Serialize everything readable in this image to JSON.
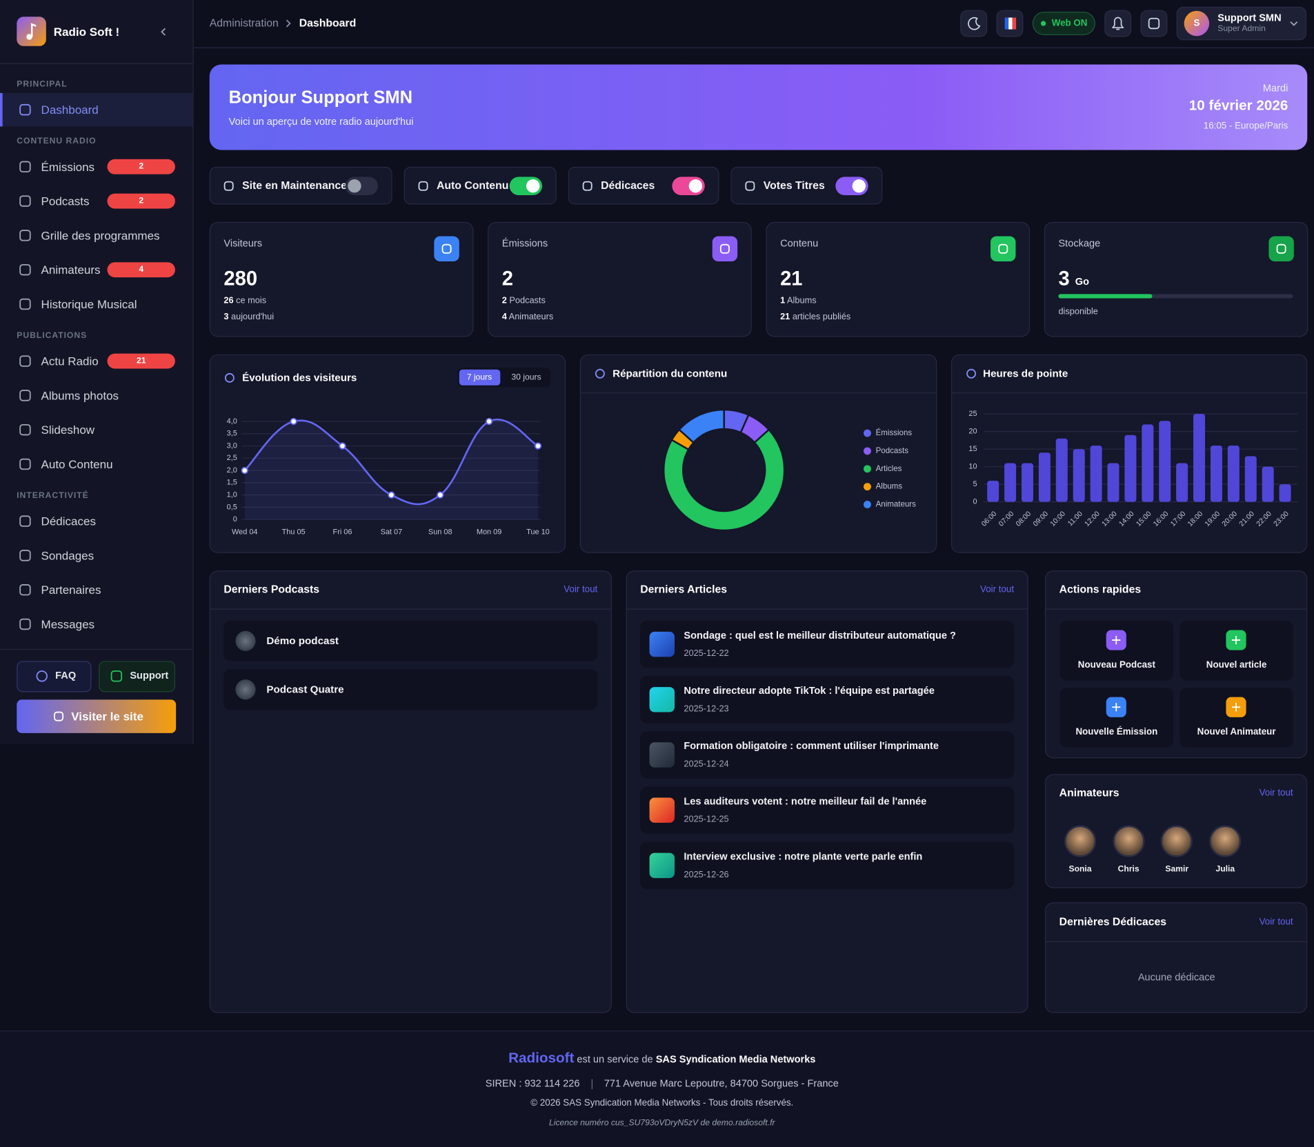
{
  "sidebar": {
    "brand": "Radio Soft !",
    "sections": [
      {
        "title": "PRINCIPAL",
        "items": [
          {
            "label": "Dashboard",
            "active": true
          }
        ]
      },
      {
        "title": "CONTENU RADIO",
        "items": [
          {
            "label": "Émissions",
            "badge": 2
          },
          {
            "label": "Podcasts",
            "badge": 2
          },
          {
            "label": "Grille des programmes"
          },
          {
            "label": "Animateurs",
            "badge": 4
          },
          {
            "label": "Historique Musical"
          }
        ]
      },
      {
        "title": "PUBLICATIONS",
        "items": [
          {
            "label": "Actu Radio",
            "badge": 21
          },
          {
            "label": "Albums photos"
          },
          {
            "label": "Slideshow"
          },
          {
            "label": "Auto Contenu"
          }
        ]
      },
      {
        "title": "INTERACTIVITÉ",
        "items": [
          {
            "label": "Dédicaces"
          },
          {
            "label": "Sondages"
          },
          {
            "label": "Partenaires"
          },
          {
            "label": "Messages"
          }
        ]
      }
    ],
    "faq": "FAQ",
    "support": "Support",
    "visit": "Visiter le site"
  },
  "topbar": {
    "breadcrumb": [
      "Administration",
      "Dashboard"
    ],
    "status": "Web ON",
    "user": {
      "initial": "S",
      "name": "Support SMN",
      "role": "Super Admin"
    }
  },
  "hero": {
    "title": "Bonjour Support SMN",
    "subtitle": "Voici un aperçu de votre radio aujourd'hui",
    "day": "Mardi",
    "date": "10 février 2026",
    "time": "16:05 - Europe/Paris"
  },
  "toggles": [
    {
      "label": "Site en Maintenance",
      "on": false,
      "color": "#4b5563"
    },
    {
      "label": "Auto Contenu",
      "on": true,
      "color": "#22c55e"
    },
    {
      "label": "Dédicaces",
      "on": true,
      "color": "#ec4899"
    },
    {
      "label": "Votes Titres",
      "on": true,
      "color": "#8b5cf6"
    }
  ],
  "stats": [
    {
      "label": "Visiteurs",
      "value": 280,
      "color": "#3b82f6",
      "lines": [
        {
          "value": 26,
          "text": "ce mois"
        },
        {
          "value": 3,
          "text": "aujourd'hui"
        }
      ]
    },
    {
      "label": "Émissions",
      "value": 2,
      "color": "#8b5cf6",
      "lines": [
        {
          "value": 2,
          "text": "Podcasts"
        },
        {
          "value": 4,
          "text": "Animateurs"
        }
      ]
    },
    {
      "label": "Contenu",
      "value": 21,
      "color": "#22c55e",
      "lines": [
        {
          "value": 1,
          "text": "Albums"
        },
        {
          "value": 21,
          "text": "articles publiés"
        }
      ]
    },
    {
      "label": "Stockage",
      "value": 3,
      "unit": "Go",
      "note": "disponible",
      "usage": 40,
      "color": "#16a34a"
    }
  ],
  "chart_data": [
    {
      "type": "line",
      "title": "Évolution des visiteurs",
      "range_options": [
        "7 jours",
        "30 jours"
      ],
      "categories": [
        "Wed 04",
        "Thu 05",
        "Fri 06",
        "Sat 07",
        "Sun 08",
        "Mon 09",
        "Tue 10"
      ],
      "values": [
        2,
        4,
        3,
        1,
        1,
        4,
        3
      ],
      "color": "#6366f1",
      "ylim": [
        0,
        4
      ],
      "yticks": [
        0,
        {
          "value": 0.5,
          "label": "0,5"
        },
        {
          "value": 1,
          "label": "1,0"
        },
        {
          "value": 1.5,
          "label": "1,5"
        },
        {
          "value": 2,
          "label": "2,0"
        },
        {
          "value": 2.5,
          "label": "2,5"
        },
        {
          "value": 3,
          "label": "3,0"
        },
        {
          "value": 3.5,
          "label": "3,5"
        },
        {
          "value": 4,
          "label": "4,0"
        }
      ],
      "grid": true
    },
    {
      "type": "pie",
      "title": "Répartition du contenu",
      "categories": [
        "Émissions",
        "Podcasts",
        "Articles",
        "Albums",
        "Animateurs"
      ],
      "values": [
        2,
        2,
        21,
        1,
        4
      ],
      "colors": [
        "#6366f1",
        "#8b5cf6",
        "#22c55e",
        "#f59e0b",
        "#3b82f6"
      ],
      "legend": "right"
    },
    {
      "type": "bar",
      "title": "Heures de pointe",
      "categories": [
        "06:00",
        "07:00",
        "08:00",
        "09:00",
        "10:00",
        "11:00",
        "12:00",
        "13:00",
        "14:00",
        "15:00",
        "16:00",
        "17:00",
        "18:00",
        "19:00",
        "20:00",
        "21:00",
        "22:00",
        "23:00"
      ],
      "values": [
        6,
        11,
        11,
        14,
        18,
        15,
        16,
        11,
        19,
        22,
        23,
        11,
        25,
        16,
        16,
        13,
        10,
        5
      ],
      "color": "#5046d8",
      "ylim": [
        0,
        25
      ],
      "yticks": [
        0,
        5,
        10,
        15,
        20,
        25
      ],
      "grid": true
    }
  ],
  "podcasts": {
    "title": "Derniers Podcasts",
    "link": "Voir tout",
    "items": [
      "Démo podcast",
      "Podcast Quatre"
    ]
  },
  "articles": {
    "title": "Derniers Articles",
    "link": "Voir tout",
    "items": [
      {
        "title": "Sondage : quel est le meilleur distributeur automatique ?",
        "date": "2025-12-22"
      },
      {
        "title": "Notre directeur adopte TikTok : l'équipe est partagée",
        "date": "2025-12-23"
      },
      {
        "title": "Formation obligatoire : comment utiliser l'imprimante",
        "date": "2025-12-24"
      },
      {
        "title": "Les auditeurs votent : notre meilleur fail de l'année",
        "date": "2025-12-25"
      },
      {
        "title": "Interview exclusive : notre plante verte parle enfin",
        "date": "2025-12-26"
      }
    ]
  },
  "actions": {
    "title": "Actions rapides",
    "items": [
      "Nouveau Podcast",
      "Nouvel article",
      "Nouvelle Émission",
      "Nouvel Animateur"
    ]
  },
  "animateurs": {
    "title": "Animateurs",
    "link": "Voir tout",
    "items": [
      "Sonia",
      "Chris",
      "Samir",
      "Julia"
    ]
  },
  "dedicaces": {
    "title": "Dernières Dédicaces",
    "link": "Voir tout",
    "empty": "Aucune dédicace"
  },
  "footer": {
    "brand": "Radiosoft",
    "service": "est un service de",
    "company": "SAS Syndication Media Networks",
    "siren": "SIREN : 932 114 226",
    "address": "771 Avenue Marc Lepoutre, 84700 Sorgues - France",
    "copyright": "© 2026 SAS Syndication Media Networks - Tous droits réservés.",
    "license": "Licence numéro cus_SU793oVDryN5zV de demo.radiosoft.fr"
  }
}
